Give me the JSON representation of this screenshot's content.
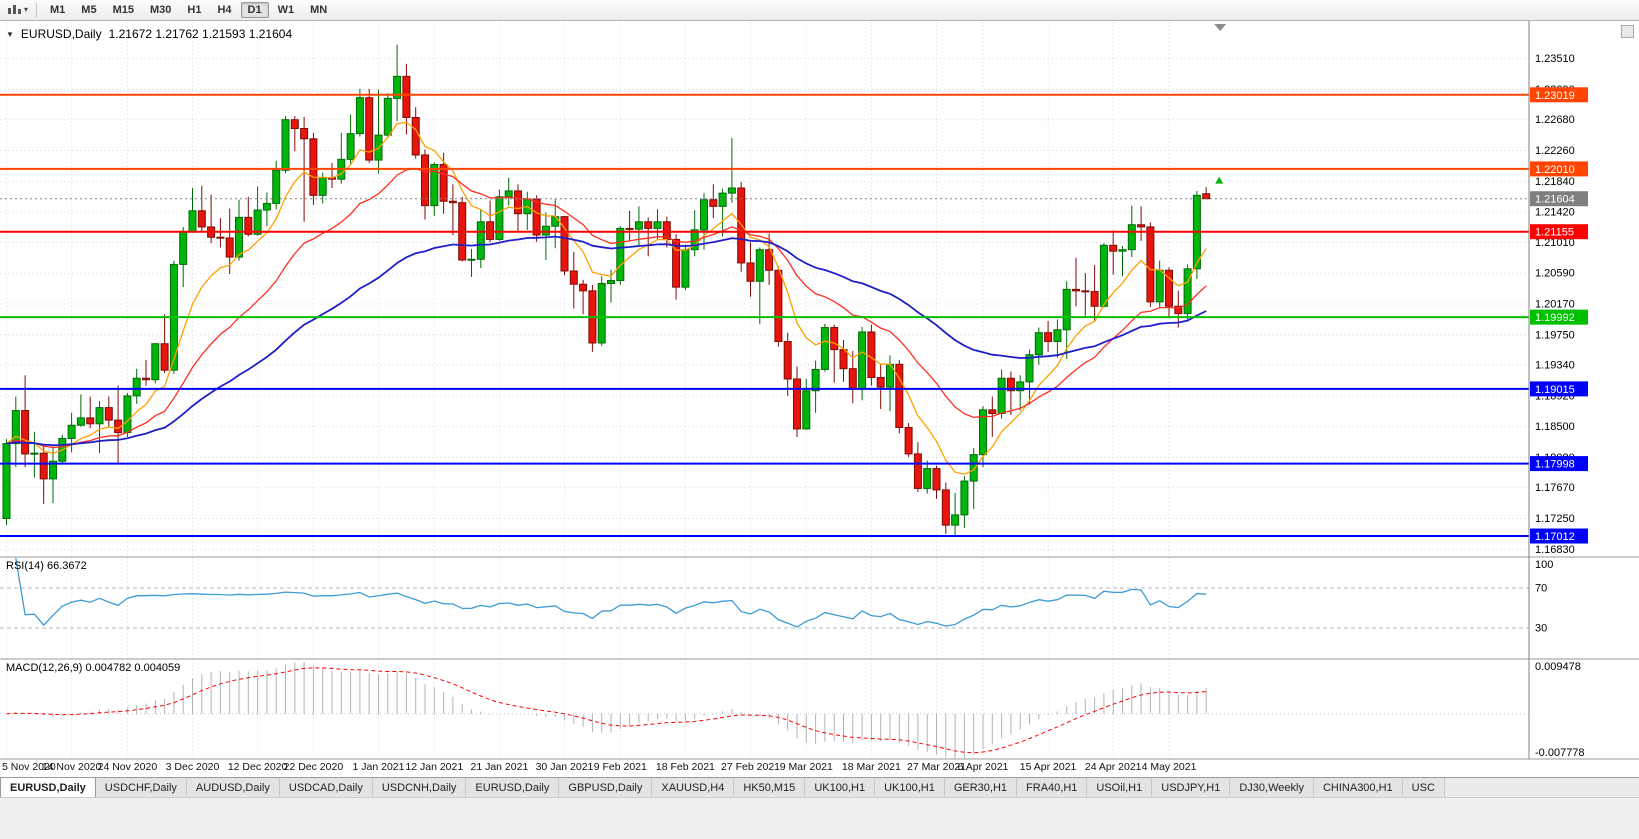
{
  "toolbar": {
    "timeframes": [
      "M1",
      "M5",
      "M15",
      "M30",
      "H1",
      "H4",
      "D1",
      "W1",
      "MN"
    ],
    "active_timeframe": "D1",
    "icons": {
      "chart_type": "candlestick-chart-icon",
      "dropdown": "chevron-down-icon"
    }
  },
  "chart_header": {
    "collapse_icon": "triangle-down-icon",
    "symbol": "EURUSD,Daily",
    "ohlc": "1.21672 1.21762 1.21593 1.21604"
  },
  "rsi_data": {
    "label": "RSI(14) 66.3672",
    "period": 14,
    "current_value": "66.3672",
    "line_color": "#3E9BD7",
    "range": [
      0,
      100
    ],
    "levels": [
      {
        "label": "100",
        "value": 100
      },
      {
        "label": "70",
        "value": 70
      },
      {
        "label": "30",
        "value": 30
      }
    ]
  },
  "macd_data": {
    "label": "MACD(12,26,9) 0.004782 0.004059",
    "fast": 12,
    "slow": 26,
    "signal": 9,
    "main_value": "0.004782",
    "signal_value": "0.004059",
    "axis_max": {
      "label": "0.009478",
      "value": 0.009478
    },
    "axis_min": {
      "label": "-0.007778",
      "value": -0.007778
    },
    "histogram_color": "#b2b2b2",
    "signal_color": "#FF0000"
  },
  "chart_data": {
    "type": "candlestick",
    "symbol": "EURUSD",
    "timeframe": "Daily",
    "ylim": [
      1.1674,
      1.2401
    ],
    "y_ticks": [
      "1.23510",
      "1.23090",
      "1.22680",
      "1.22260",
      "1.21840",
      "1.21420",
      "1.21010",
      "1.20590",
      "1.20170",
      "1.19750",
      "1.19340",
      "1.18920",
      "1.18500",
      "1.18080",
      "1.17670",
      "1.17250",
      "1.16830"
    ],
    "x_labels": [
      {
        "index": 0,
        "label": "5 Nov 2020"
      },
      {
        "index": 7,
        "label": "14 Nov 2020"
      },
      {
        "index": 13,
        "label": "24 Nov 2020"
      },
      {
        "index": 20,
        "label": "3 Dec 2020"
      },
      {
        "index": 27,
        "label": "12 Dec 2020"
      },
      {
        "index": 33,
        "label": "22 Dec 2020"
      },
      {
        "index": 40,
        "label": "1 Jan 2021"
      },
      {
        "index": 46,
        "label": "12 Jan 2021"
      },
      {
        "index": 53,
        "label": "21 Jan 2021"
      },
      {
        "index": 60,
        "label": "30 Jan 2021"
      },
      {
        "index": 66,
        "label": "9 Feb 2021"
      },
      {
        "index": 73,
        "label": "18 Feb 2021"
      },
      {
        "index": 80,
        "label": "27 Feb 2021"
      },
      {
        "index": 86,
        "label": "9 Mar 2021"
      },
      {
        "index": 93,
        "label": "18 Mar 2021"
      },
      {
        "index": 100,
        "label": "27 Mar 2021"
      },
      {
        "index": 105,
        "label": "6 Apr 2021"
      },
      {
        "index": 112,
        "label": "15 Apr 2021"
      },
      {
        "index": 119,
        "label": "24 Apr 2021"
      },
      {
        "index": 125,
        "label": "4 May 2021"
      }
    ],
    "candles": [
      [
        1.1725,
        1.1833,
        1.1716,
        1.1827
      ],
      [
        1.1827,
        1.1891,
        1.1795,
        1.1872
      ],
      [
        1.1872,
        1.192,
        1.1795,
        1.1813
      ],
      [
        1.1813,
        1.1843,
        1.1781,
        1.1814
      ],
      [
        1.1814,
        1.1824,
        1.1745,
        1.1779
      ],
      [
        1.1779,
        1.1823,
        1.1746,
        1.1803
      ],
      [
        1.1803,
        1.1839,
        1.1799,
        1.1834
      ],
      [
        1.1834,
        1.1869,
        1.1815,
        1.1852
      ],
      [
        1.1852,
        1.1894,
        1.185,
        1.1862
      ],
      [
        1.1862,
        1.1891,
        1.1848,
        1.1854
      ],
      [
        1.1854,
        1.1885,
        1.1814,
        1.1876
      ],
      [
        1.1876,
        1.1891,
        1.1849,
        1.1859
      ],
      [
        1.1859,
        1.1906,
        1.1799,
        1.1842
      ],
      [
        1.1842,
        1.1896,
        1.1836,
        1.1892
      ],
      [
        1.1892,
        1.1929,
        1.1881,
        1.1916
      ],
      [
        1.1916,
        1.1941,
        1.1906,
        1.1914
      ],
      [
        1.1914,
        1.1964,
        1.1909,
        1.1963
      ],
      [
        1.1963,
        1.2003,
        1.1923,
        1.1927
      ],
      [
        1.1927,
        1.2076,
        1.1922,
        1.2071
      ],
      [
        1.2071,
        1.2122,
        1.204,
        1.2115
      ],
      [
        1.2115,
        1.2175,
        1.2114,
        1.2144
      ],
      [
        1.2144,
        1.2178,
        1.2116,
        1.2122
      ],
      [
        1.2122,
        1.2166,
        1.21,
        1.2108
      ],
      [
        1.2108,
        1.2134,
        1.2094,
        1.2107
      ],
      [
        1.2107,
        1.2147,
        1.2058,
        1.2081
      ],
      [
        1.2081,
        1.2159,
        1.2076,
        1.2135
      ],
      [
        1.2135,
        1.2163,
        1.2109,
        1.2112
      ],
      [
        1.2112,
        1.2177,
        1.211,
        1.2145
      ],
      [
        1.2145,
        1.2169,
        1.2123,
        1.2154
      ],
      [
        1.2154,
        1.2212,
        1.2146,
        1.2199
      ],
      [
        1.2199,
        1.2273,
        1.2195,
        1.2268
      ],
      [
        1.2268,
        1.2273,
        1.2225,
        1.2256
      ],
      [
        1.2256,
        1.2272,
        1.2129,
        1.2242
      ],
      [
        1.2242,
        1.225,
        1.2152,
        1.2165
      ],
      [
        1.2165,
        1.2196,
        1.2154,
        1.2189
      ],
      [
        1.2189,
        1.2209,
        1.2175,
        1.2187
      ],
      [
        1.2187,
        1.225,
        1.2181,
        1.2214
      ],
      [
        1.2214,
        1.2275,
        1.2208,
        1.2249
      ],
      [
        1.2249,
        1.231,
        1.2245,
        1.2298
      ],
      [
        1.2298,
        1.231,
        1.2209,
        1.2213
      ],
      [
        1.2213,
        1.2309,
        1.2195,
        1.2247
      ],
      [
        1.2247,
        1.2304,
        1.2244,
        1.2297
      ],
      [
        1.2297,
        1.237,
        1.2266,
        1.2327
      ],
      [
        1.2327,
        1.2344,
        1.2248,
        1.2271
      ],
      [
        1.2271,
        1.2285,
        1.2215,
        1.222
      ],
      [
        1.222,
        1.2227,
        1.2132,
        1.2151
      ],
      [
        1.2151,
        1.221,
        1.2137,
        1.2207
      ],
      [
        1.2207,
        1.2223,
        1.214,
        1.2157
      ],
      [
        1.2157,
        1.218,
        1.2111,
        1.2155
      ],
      [
        1.2155,
        1.2163,
        1.2075,
        1.2077
      ],
      [
        1.2077,
        1.2092,
        1.2054,
        1.2078
      ],
      [
        1.2078,
        1.2145,
        1.2066,
        1.2129
      ],
      [
        1.2129,
        1.2158,
        1.2101,
        1.2105
      ],
      [
        1.2105,
        1.2173,
        1.2103,
        1.2163
      ],
      [
        1.2163,
        1.2189,
        1.2151,
        1.2171
      ],
      [
        1.2171,
        1.218,
        1.2116,
        1.214
      ],
      [
        1.214,
        1.217,
        1.2118,
        1.216
      ],
      [
        1.216,
        1.2165,
        1.2102,
        1.2111
      ],
      [
        1.2111,
        1.2142,
        1.2077,
        1.2123
      ],
      [
        1.2123,
        1.216,
        1.2093,
        1.2136
      ],
      [
        1.2136,
        1.2137,
        1.2056,
        1.2062
      ],
      [
        1.2062,
        1.2088,
        1.2011,
        1.2044
      ],
      [
        1.2044,
        1.205,
        1.2003,
        1.2035
      ],
      [
        1.2035,
        1.2043,
        1.1952,
        1.1964
      ],
      [
        1.1964,
        1.2055,
        1.196,
        1.2045
      ],
      [
        1.2045,
        1.2064,
        1.2019,
        1.2049
      ],
      [
        1.2049,
        1.2123,
        1.2043,
        1.212
      ],
      [
        1.212,
        1.2144,
        1.2102,
        1.2119
      ],
      [
        1.2119,
        1.215,
        1.2096,
        1.2129
      ],
      [
        1.2129,
        1.2135,
        1.2082,
        1.212
      ],
      [
        1.212,
        1.2146,
        1.2105,
        1.2129
      ],
      [
        1.2129,
        1.2136,
        1.2094,
        1.2105
      ],
      [
        1.2105,
        1.2112,
        1.2023,
        1.204
      ],
      [
        1.204,
        1.2098,
        1.2036,
        1.2091
      ],
      [
        1.2091,
        1.2145,
        1.2082,
        1.2118
      ],
      [
        1.2118,
        1.2168,
        1.2091,
        1.2159
      ],
      [
        1.2159,
        1.218,
        1.2134,
        1.215
      ],
      [
        1.215,
        1.2174,
        1.2109,
        1.2168
      ],
      [
        1.2168,
        1.2243,
        1.2155,
        1.2175
      ],
      [
        1.2175,
        1.2183,
        1.2061,
        1.2073
      ],
      [
        1.2073,
        1.2101,
        1.2027,
        1.2048
      ],
      [
        1.2048,
        1.2094,
        1.199,
        1.2091
      ],
      [
        1.2091,
        1.2113,
        1.2043,
        1.2063
      ],
      [
        1.2063,
        1.2069,
        1.1959,
        1.1966
      ],
      [
        1.1966,
        1.1978,
        1.1892,
        1.1915
      ],
      [
        1.1915,
        1.1932,
        1.1836,
        1.1847
      ],
      [
        1.1847,
        1.1915,
        1.1846,
        1.1899
      ],
      [
        1.1899,
        1.194,
        1.1869,
        1.1928
      ],
      [
        1.1928,
        1.199,
        1.1925,
        1.1985
      ],
      [
        1.1985,
        1.1989,
        1.191,
        1.1955
      ],
      [
        1.1955,
        1.1968,
        1.1911,
        1.1929
      ],
      [
        1.1929,
        1.1953,
        1.1882,
        1.1901
      ],
      [
        1.1901,
        1.1986,
        1.1886,
        1.1979
      ],
      [
        1.1979,
        1.1989,
        1.1906,
        1.1917
      ],
      [
        1.1917,
        1.1936,
        1.1874,
        1.1904
      ],
      [
        1.1904,
        1.1947,
        1.1871,
        1.1935
      ],
      [
        1.1935,
        1.1941,
        1.1841,
        1.1849
      ],
      [
        1.1849,
        1.1855,
        1.1809,
        1.1813
      ],
      [
        1.1813,
        1.1829,
        1.1761,
        1.1766
      ],
      [
        1.1766,
        1.1804,
        1.1759,
        1.1793
      ],
      [
        1.1793,
        1.1797,
        1.1752,
        1.1764
      ],
      [
        1.1764,
        1.1774,
        1.1704,
        1.1716
      ],
      [
        1.1716,
        1.176,
        1.17,
        1.173
      ],
      [
        1.173,
        1.1783,
        1.1712,
        1.1776
      ],
      [
        1.1776,
        1.1821,
        1.1738,
        1.1812
      ],
      [
        1.1812,
        1.1878,
        1.1795,
        1.1873
      ],
      [
        1.1873,
        1.1891,
        1.1836,
        1.1868
      ],
      [
        1.1868,
        1.1928,
        1.1861,
        1.1916
      ],
      [
        1.1916,
        1.1925,
        1.1866,
        1.1899
      ],
      [
        1.1899,
        1.192,
        1.1872,
        1.1911
      ],
      [
        1.1911,
        1.1955,
        1.188,
        1.1948
      ],
      [
        1.1948,
        1.1985,
        1.1934,
        1.1978
      ],
      [
        1.1978,
        1.1994,
        1.1952,
        1.1966
      ],
      [
        1.1966,
        1.1996,
        1.1944,
        1.1982
      ],
      [
        1.1982,
        1.2048,
        1.1942,
        1.2037
      ],
      [
        1.2037,
        1.208,
        1.2014,
        1.2035
      ],
      [
        1.2035,
        1.2059,
        1.2001,
        1.2034
      ],
      [
        1.2034,
        1.207,
        1.1993,
        1.2014
      ],
      [
        1.2014,
        1.21,
        1.2012,
        1.2097
      ],
      [
        1.2097,
        1.2117,
        1.2057,
        1.2089
      ],
      [
        1.2089,
        1.2096,
        1.2055,
        1.2091
      ],
      [
        1.2091,
        1.2151,
        1.2081,
        1.2125
      ],
      [
        1.2125,
        1.215,
        1.2103,
        1.2122
      ],
      [
        1.2122,
        1.2128,
        1.2013,
        1.202
      ],
      [
        1.202,
        1.2076,
        1.2013,
        1.2063
      ],
      [
        1.2063,
        1.2067,
        1.1999,
        1.2014
      ],
      [
        1.2014,
        1.2035,
        1.1985,
        1.2004
      ],
      [
        1.2004,
        1.2071,
        1.1993,
        1.2065
      ],
      [
        1.2065,
        1.2171,
        1.2051,
        1.2165
      ],
      [
        1.21672,
        1.21762,
        1.21593,
        1.21604
      ]
    ],
    "moving_averages": [
      {
        "name": "ma-fast",
        "type": "ema",
        "period": 8,
        "color": "#FFA000",
        "width": 1.3
      },
      {
        "name": "ma-mid",
        "type": "ema",
        "period": 21,
        "color": "#FF2D21",
        "width": 1.3
      },
      {
        "name": "ma-slow",
        "type": "ema",
        "period": 50,
        "color": "#1F1FC8",
        "width": 1.8
      }
    ],
    "hlines": [
      {
        "label": "1.23019",
        "value": 1.23019,
        "color": "#FF4500"
      },
      {
        "label": "1.22010",
        "value": 1.2201,
        "color": "#FF4500"
      },
      {
        "label": "1.21155",
        "value": 1.21155,
        "color": "#FF0000"
      },
      {
        "label": "1.19992",
        "value": 1.19992,
        "color": "#00C000"
      },
      {
        "label": "1.19015",
        "value": 1.19015,
        "color": "#0000FF"
      },
      {
        "label": "1.17998",
        "value": 1.17998,
        "color": "#0000FF"
      },
      {
        "label": "1.17012",
        "value": 1.17012,
        "color": "#0000FF"
      }
    ],
    "current_price": {
      "label": "1.21604",
      "value": 1.21604,
      "color": "#7F7F7F"
    },
    "marker": {
      "index": 130.4,
      "value": 1.2185,
      "color": "#00B40C",
      "shape": "up-arrow"
    },
    "colors": {
      "up": "#00B60C",
      "up_border": "#006B06",
      "down": "#E6150D",
      "down_border": "#7E0A05",
      "grid": "#DADADA",
      "separator": "#9A9A9A",
      "axis_text": "#000000"
    }
  },
  "tabs": [
    {
      "label": "EURUSD,Daily",
      "active": true
    },
    {
      "label": "USDCHF,Daily",
      "active": false
    },
    {
      "label": "AUDUSD,Daily",
      "active": false
    },
    {
      "label": "USDCAD,Daily",
      "active": false
    },
    {
      "label": "USDCNH,Daily",
      "active": false
    },
    {
      "label": "EURUSD,Daily",
      "active": false
    },
    {
      "label": "GBPUSD,Daily",
      "active": false
    },
    {
      "label": "XAUUSD,H4",
      "active": false
    },
    {
      "label": "HK50,M15",
      "active": false
    },
    {
      "label": "UK100,H1",
      "active": false
    },
    {
      "label": "UK100,H1",
      "active": false
    },
    {
      "label": "GER30,H1",
      "active": false
    },
    {
      "label": "FRA40,H1",
      "active": false
    },
    {
      "label": "USOil,H1",
      "active": false
    },
    {
      "label": "USDJPY,H1",
      "active": false
    },
    {
      "label": "DJ30,Weekly",
      "active": false
    },
    {
      "label": "CHINA300,H1",
      "active": false
    },
    {
      "label": "USC",
      "active": false
    }
  ]
}
